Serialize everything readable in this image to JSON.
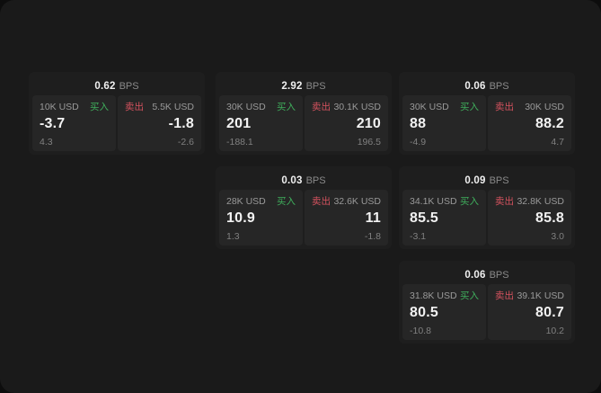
{
  "colors": {
    "buy_green": "#3fae5c",
    "sell_red": "#d4525e",
    "page_bg": "#1a1a1a",
    "card_bg": "#1e1e1e",
    "panel_bg": "#262626"
  },
  "cards": [
    {
      "grid": {
        "row": 1,
        "col": 1
      },
      "bps_value": "0.62",
      "bps_unit": "BPS",
      "buy": {
        "size": "10K USD",
        "side_label": "买入",
        "value": "-3.7",
        "sub_value": "4.3"
      },
      "sell": {
        "side_label": "卖出",
        "size": "5.5K USD",
        "value": "-1.8",
        "sub_value": "-2.6"
      }
    },
    {
      "grid": {
        "row": 1,
        "col": 2
      },
      "bps_value": "2.92",
      "bps_unit": "BPS",
      "buy": {
        "size": "30K USD",
        "side_label": "买入",
        "value": "201",
        "sub_value": "-188.1"
      },
      "sell": {
        "side_label": "卖出",
        "size": "30.1K USD",
        "value": "210",
        "sub_value": "196.5"
      }
    },
    {
      "grid": {
        "row": 1,
        "col": 3
      },
      "bps_value": "0.06",
      "bps_unit": "BPS",
      "buy": {
        "size": "30K USD",
        "side_label": "买入",
        "value": "88",
        "sub_value": "-4.9"
      },
      "sell": {
        "side_label": "卖出",
        "size": "30K USD",
        "value": "88.2",
        "sub_value": "4.7"
      }
    },
    {
      "grid": {
        "row": 2,
        "col": 2
      },
      "bps_value": "0.03",
      "bps_unit": "BPS",
      "buy": {
        "size": "28K USD",
        "side_label": "买入",
        "value": "10.9",
        "sub_value": "1.3"
      },
      "sell": {
        "side_label": "卖出",
        "size": "32.6K USD",
        "value": "11",
        "sub_value": "-1.8"
      }
    },
    {
      "grid": {
        "row": 2,
        "col": 3
      },
      "bps_value": "0.09",
      "bps_unit": "BPS",
      "buy": {
        "size": "34.1K USD",
        "side_label": "买入",
        "value": "85.5",
        "sub_value": "-3.1"
      },
      "sell": {
        "side_label": "卖出",
        "size": "32.8K USD",
        "value": "85.8",
        "sub_value": "3.0"
      }
    },
    {
      "grid": {
        "row": 3,
        "col": 3
      },
      "bps_value": "0.06",
      "bps_unit": "BPS",
      "buy": {
        "size": "31.8K USD",
        "side_label": "买入",
        "value": "80.5",
        "sub_value": "-10.8"
      },
      "sell": {
        "side_label": "卖出",
        "size": "39.1K USD",
        "value": "80.7",
        "sub_value": "10.2"
      }
    }
  ]
}
